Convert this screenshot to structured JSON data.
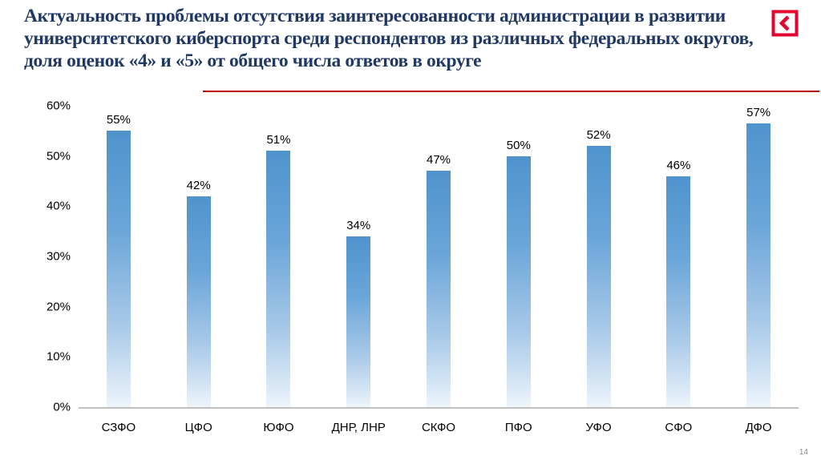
{
  "slide": {
    "title": "Актуальность проблемы отсутствия заинтересованности администрации в развитии университетского киберспорта среди респондентов из различных федеральных округов, доля оценок «4» и «5» от общего числа ответов в округе",
    "page_number": "14",
    "accent_color": "#C00000",
    "logo_icon": "chevron-left-in-square",
    "logo_color": "#E4032E"
  },
  "chart_data": {
    "type": "bar",
    "title": "",
    "categories": [
      "СЗФО",
      "ЦФО",
      "ЮФО",
      "ДНР, ЛНР",
      "СКФО",
      "ПФО",
      "УФО",
      "СФО",
      "ДФО"
    ],
    "values": [
      55,
      42,
      51,
      34,
      47,
      50,
      52,
      46,
      57
    ],
    "data_labels": [
      "55%",
      "42%",
      "51%",
      "34%",
      "47%",
      "50%",
      "52%",
      "46%",
      "57%"
    ],
    "xlabel": "",
    "ylabel": "",
    "ylim": [
      0,
      60
    ],
    "yticks": [
      0,
      10,
      20,
      30,
      40,
      50,
      60
    ],
    "ytick_labels": [
      "0%",
      "10%",
      "20%",
      "30%",
      "40%",
      "50%",
      "60%"
    ],
    "grid": false,
    "legend": false,
    "bar_color_top": "#5B9BD5",
    "bar_color_bottom": "#EEF5FB",
    "axis_line_color": "#BFBFBF"
  }
}
